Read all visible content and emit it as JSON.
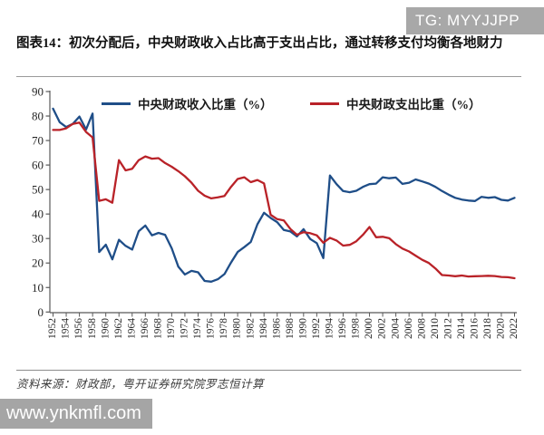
{
  "badge": {
    "text": "TG: MYYJJPP"
  },
  "title": "图表14：初次分配后，中央财政收入占比高于支出占比，通过转移支付均衡各地财力",
  "source_note": "资料来源：财政部，粤开证券研究院罗志恒计算",
  "watermark": "www.ynkmfl.com",
  "colors": {
    "revenue_line": "#1f4e88",
    "expenditure_line": "#b92228",
    "badge_bg": "#a8a8a8",
    "watermark_bg": "#a5a5a5",
    "axis": "#595959",
    "tick_text": "#262626"
  },
  "chart_data": {
    "type": "line",
    "title": "",
    "xlabel": "",
    "ylabel": "",
    "ylim": [
      0,
      90
    ],
    "ytick_step": 10,
    "grid": false,
    "legend_position": "top",
    "x_start_year": 1952,
    "x_end_year": 2022,
    "xtick_labels": [
      "1952",
      "1954",
      "1956",
      "1958",
      "1960",
      "1962",
      "1964",
      "1966",
      "1968",
      "1970",
      "1972",
      "1974",
      "1976",
      "1978",
      "1980",
      "1982",
      "1984",
      "1986",
      "1988",
      "1990",
      "1992",
      "1994",
      "1996",
      "1998",
      "2000",
      "2002",
      "2004",
      "2006",
      "2008",
      "2010",
      "2012",
      "2014",
      "2016",
      "2018",
      "2020",
      "2022"
    ],
    "series": [
      {
        "name": "中央财政收入比重（%）",
        "color": "#1f4e88",
        "values": [
          83.0,
          77.5,
          75.5,
          76.8,
          79.8,
          74.5,
          81.0,
          24.5,
          27.5,
          21.5,
          29.5,
          27.0,
          25.5,
          33.0,
          35.3,
          31.3,
          32.3,
          31.5,
          26.0,
          18.5,
          15.3,
          16.8,
          16.2,
          12.7,
          12.4,
          13.4,
          15.5,
          20.2,
          24.5,
          26.5,
          28.6,
          35.8,
          40.5,
          38.4,
          36.7,
          33.5,
          32.9,
          30.9,
          33.8,
          29.8,
          28.1,
          22.0,
          55.7,
          52.2,
          49.4,
          48.9,
          49.5,
          51.1,
          52.2,
          52.4,
          55.0,
          54.6,
          54.9,
          52.3,
          52.8,
          54.1,
          53.3,
          52.4,
          51.1,
          49.4,
          47.9,
          46.6,
          45.9,
          45.5,
          45.3,
          47.0,
          46.6,
          46.9,
          45.8,
          45.5,
          46.6
        ]
      },
      {
        "name": "中央财政支出比重（%）",
        "color": "#b92228",
        "values": [
          74.3,
          74.3,
          75.0,
          76.8,
          77.3,
          73.5,
          71.3,
          45.4,
          46.0,
          44.6,
          62.0,
          57.8,
          58.5,
          62.0,
          63.5,
          62.6,
          62.8,
          60.8,
          59.3,
          57.5,
          55.4,
          52.8,
          49.5,
          47.5,
          46.4,
          46.8,
          47.4,
          51.1,
          54.3,
          55.0,
          53.0,
          53.9,
          52.5,
          39.7,
          37.9,
          37.4,
          33.9,
          31.5,
          32.6,
          32.2,
          31.3,
          28.3,
          30.3,
          29.2,
          27.1,
          27.4,
          28.9,
          31.5,
          34.7,
          30.5,
          30.7,
          30.1,
          27.7,
          25.9,
          24.7,
          23.0,
          21.3,
          20.0,
          17.8,
          15.1,
          14.9,
          14.6,
          14.9,
          14.5,
          14.6,
          14.7,
          14.8,
          14.7,
          14.3,
          14.2,
          13.8
        ]
      }
    ]
  }
}
